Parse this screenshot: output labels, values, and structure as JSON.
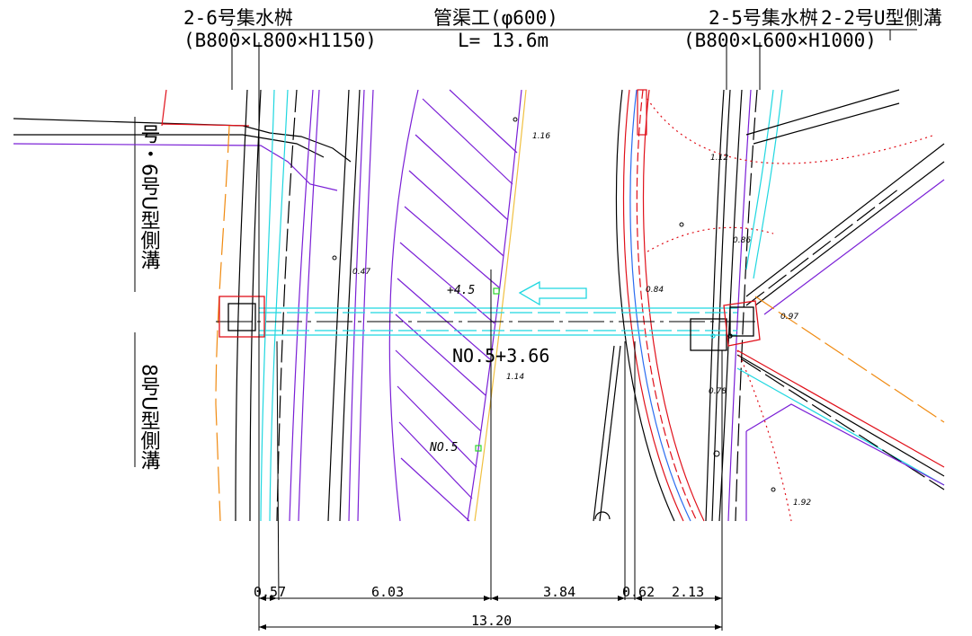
{
  "header": {
    "left_title": "2-6号集水桝",
    "left_dims": "(B800×L800×H1150)",
    "center_title": "管渠工(φ600)",
    "center_length": "L= 13.6m",
    "right_title": "2-5号集水桝",
    "right_dims": "(B800×L600×H1000)",
    "far_right_title": "2-2号U型側溝"
  },
  "side_labels": {
    "upper_left_vertical": "号・6号U型側溝",
    "lower_left_vertical": "8号U型側溝"
  },
  "plan": {
    "station_main": "NO.5+3.66",
    "station_offset": "+4.5",
    "station_no5": "NO.5",
    "small_values": {
      "v116": "1.16",
      "v112": "1.12",
      "v086": "0.86",
      "v084": "0.84",
      "v047": "0.47",
      "v097": "0.97",
      "v114": "1.14",
      "v078": "0.78",
      "v192": "1.92"
    }
  },
  "dimensions": {
    "seg1": "0.57",
    "seg2": "6.03",
    "seg3": "3.84",
    "seg4": "0.62",
    "seg5": "2.13",
    "total": "13.20"
  },
  "colors": {
    "purple": "#7a1fd6",
    "cyan": "#1fd7e0",
    "red": "#e0101a",
    "orange": "#f08a10",
    "blue": "#2a6cf0",
    "black": "#000000"
  }
}
